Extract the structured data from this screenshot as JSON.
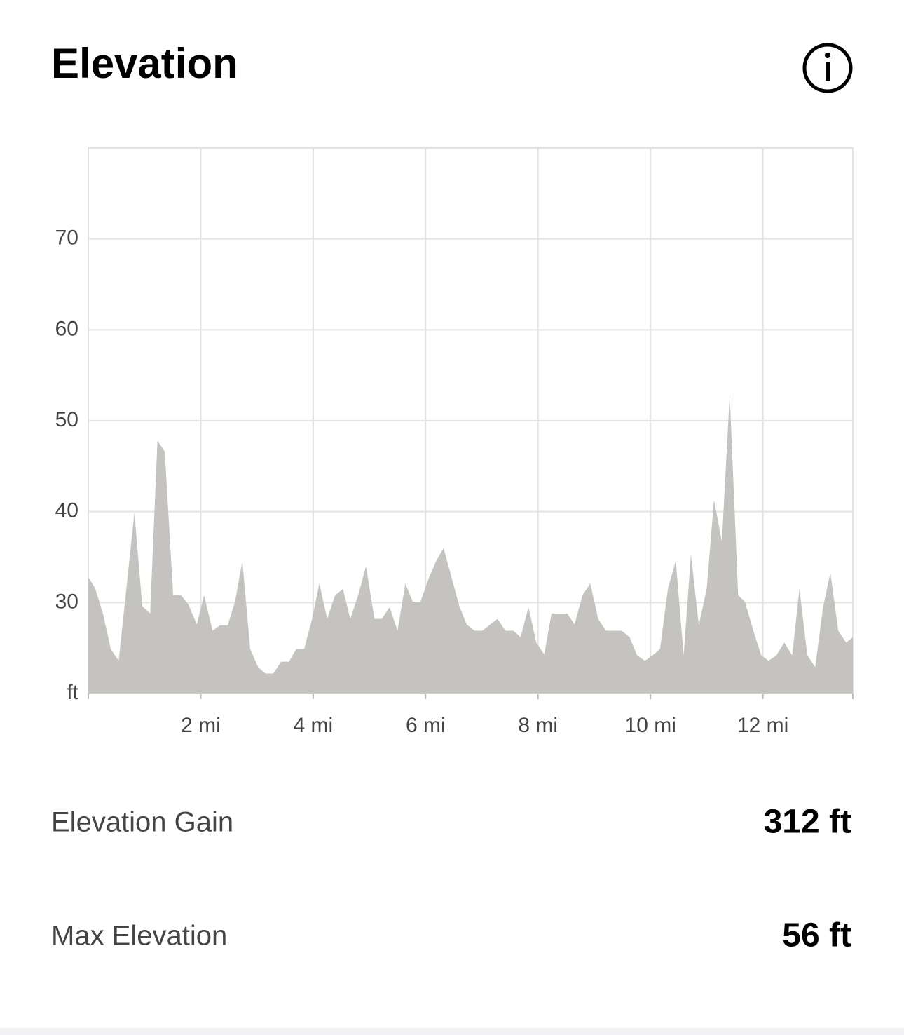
{
  "chart_data": {
    "type": "area",
    "title": "Elevation",
    "color": "#c4c3bf",
    "grid": true,
    "x": [
      0,
      0.12,
      0.26,
      0.4,
      0.54,
      0.69,
      0.82,
      0.96,
      1.1,
      1.23,
      1.36,
      1.51,
      1.65,
      1.78,
      1.93,
      2.06,
      2.21,
      2.34,
      2.48,
      2.61,
      2.74,
      2.88,
      3.02,
      3.15,
      3.29,
      3.43,
      3.57,
      3.7,
      3.84,
      3.98,
      4.11,
      4.25,
      4.39,
      4.53,
      4.66,
      4.8,
      4.94,
      5.09,
      5.22,
      5.36,
      5.5,
      5.64,
      5.77,
      5.91,
      6.05,
      6.19,
      6.32,
      6.46,
      6.6,
      6.73,
      6.87,
      7.01,
      7.15,
      7.28,
      7.42,
      7.56,
      7.69,
      7.83,
      7.97,
      8.11,
      8.24,
      8.38,
      8.52,
      8.65,
      8.79,
      8.93,
      9.07,
      9.21,
      9.35,
      9.49,
      9.63,
      9.76,
      9.9,
      10.04,
      10.17,
      10.31,
      10.45,
      10.59,
      10.72,
      10.86,
      11.0,
      11.13,
      11.27,
      11.41,
      11.56,
      11.68,
      11.83,
      11.97,
      12.1,
      12.24,
      12.38,
      12.52,
      12.65,
      12.79,
      12.93,
      13.07,
      13.2,
      13.34,
      13.48,
      13.6
    ],
    "values": [
      32.8,
      31.6,
      28.8,
      24.9,
      23.6,
      32.3,
      39.9,
      29.6,
      28.8,
      47.8,
      46.6,
      30.8,
      30.8,
      29.8,
      27.6,
      30.8,
      26.9,
      27.5,
      27.5,
      30.1,
      34.6,
      24.9,
      22.9,
      22.2,
      22.2,
      23.5,
      23.5,
      24.9,
      24.9,
      28.2,
      32.1,
      28.2,
      30.8,
      31.5,
      28.2,
      30.8,
      34.0,
      28.2,
      28.2,
      29.5,
      26.9,
      32.1,
      30.1,
      30.1,
      32.6,
      34.6,
      36.0,
      32.8,
      29.6,
      27.6,
      26.9,
      26.9,
      27.6,
      28.2,
      26.9,
      26.9,
      26.2,
      29.5,
      25.6,
      24.3,
      28.8,
      28.8,
      28.8,
      27.6,
      30.8,
      32.1,
      28.2,
      26.9,
      26.9,
      26.9,
      26.2,
      24.2,
      23.6,
      24.2,
      24.9,
      31.5,
      34.6,
      24.2,
      35.3,
      27.5,
      31.5,
      41.3,
      36.7,
      52.9,
      30.8,
      30.1,
      26.9,
      24.2,
      23.6,
      24.2,
      25.6,
      24.2,
      31.5,
      24.2,
      22.9,
      29.5,
      33.3,
      26.9,
      25.6,
      26.2
    ],
    "xlim": [
      0,
      13.6
    ],
    "xticks": [
      {
        "value": 2,
        "label": "2 mi"
      },
      {
        "value": 4,
        "label": "4 mi"
      },
      {
        "value": 6,
        "label": "6 mi"
      },
      {
        "value": 8,
        "label": "8 mi"
      },
      {
        "value": 10,
        "label": "10 mi"
      },
      {
        "value": 12,
        "label": "12 mi"
      }
    ],
    "ylim": [
      20,
      80
    ],
    "yticks": [
      {
        "value": 20,
        "label": "ft"
      },
      30,
      40,
      50,
      60,
      70
    ]
  },
  "stats": [
    {
      "label": "Elevation Gain",
      "value": "312 ft"
    },
    {
      "label": "Max Elevation",
      "value": "56 ft"
    }
  ]
}
